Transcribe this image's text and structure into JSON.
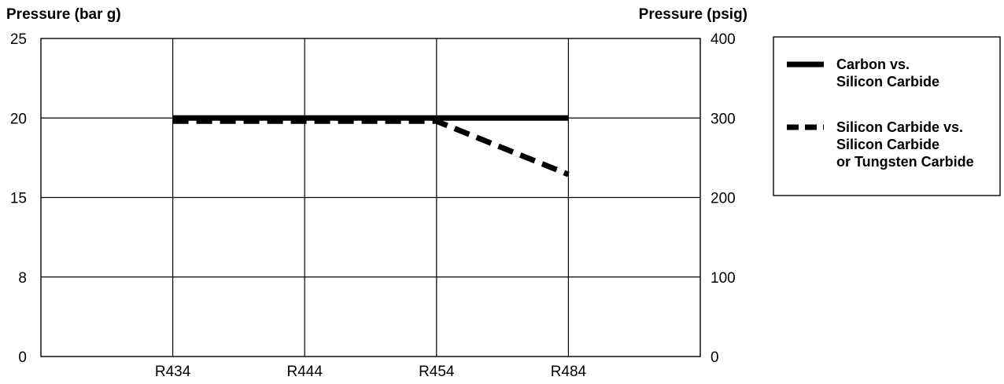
{
  "chart_data": {
    "type": "line",
    "left_axis_title": "Pressure (bar g)",
    "right_axis_title": "Pressure (psig)",
    "categories": [
      "R434",
      "R444",
      "R454",
      "R484"
    ],
    "left_tick_labels": [
      "25",
      "20",
      "15",
      "8",
      "0"
    ],
    "right_tick_labels": [
      "400",
      "300",
      "200",
      "100",
      "0"
    ],
    "grid": true,
    "legend_position": "right",
    "series": [
      {
        "name": "Carbon vs. Silicon Carbide",
        "legend_lines": [
          "Carbon vs.",
          "Silicon Carbide"
        ],
        "style": "solid",
        "color": "#000000",
        "x": [
          "R434",
          "R444",
          "R454",
          "R484"
        ],
        "y_psig": [
          300,
          300,
          300,
          300
        ]
      },
      {
        "name": "Silicon Carbide vs. Silicon Carbide or Tungsten Carbide",
        "legend_lines": [
          "Silicon Carbide vs.",
          "Silicon Carbide",
          "or Tungsten Carbide"
        ],
        "style": "dashed",
        "color": "#000000",
        "x": [
          "R434",
          "R444",
          "R454",
          "R484"
        ],
        "y_psig": [
          296,
          296,
          296,
          229
        ]
      }
    ]
  }
}
